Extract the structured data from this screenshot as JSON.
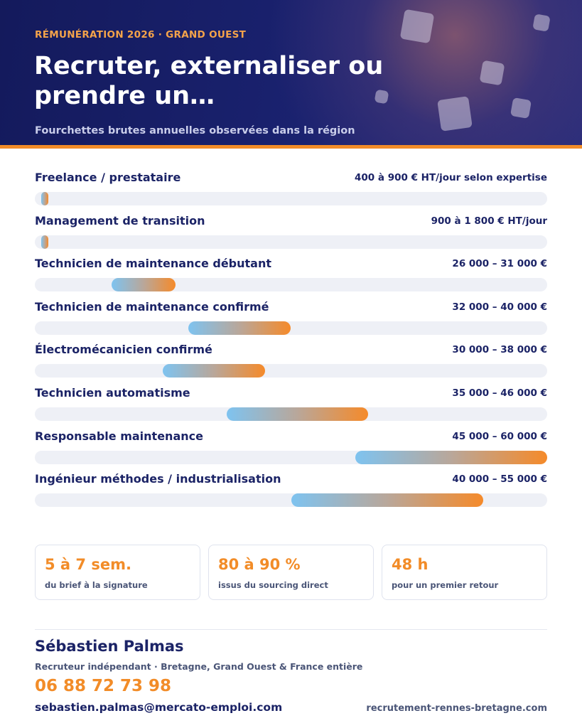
{
  "header": {
    "eyebrow": "RÉMUNÉRATION 2026 · GRAND OUEST",
    "title": "Recruter, externaliser ou prendre un…",
    "subtitle": "Fourchettes brutes annuelles observées dans la région"
  },
  "colors": {
    "accent": "#f28c28",
    "navy": "#1b2366",
    "bar_start": "#7ec3f0",
    "bar_end": "#f58a2a",
    "track": "#eef0f6"
  },
  "scale": {
    "min": 20000,
    "max": 60000,
    "unit": "€ brut annuel"
  },
  "rows": [
    {
      "label": "Freelance / prestataire",
      "value": "400 à 900 € HT/jour selon expertise",
      "min": null,
      "max": null,
      "marker_fraction": 0.012
    },
    {
      "label": "Management de transition",
      "value": "900 à 1 800 € HT/jour",
      "min": null,
      "max": null,
      "marker_fraction": 0.012
    },
    {
      "label": "Technicien de maintenance débutant",
      "value": "26 000 – 31 000 €",
      "min": 26000,
      "max": 31000
    },
    {
      "label": "Technicien de maintenance confirmé",
      "value": "32 000 – 40 000 €",
      "min": 32000,
      "max": 40000
    },
    {
      "label": "Électromécanicien confirmé",
      "value": "30 000 – 38 000 €",
      "min": 30000,
      "max": 38000
    },
    {
      "label": "Technicien automatisme",
      "value": "35 000 – 46 000 €",
      "min": 35000,
      "max": 46000
    },
    {
      "label": "Responsable maintenance",
      "value": "45 000 – 60 000 €",
      "min": 45000,
      "max": 60000
    },
    {
      "label": "Ingénieur méthodes / industrialisation",
      "value": "40 000 – 55 000 €",
      "min": 40000,
      "max": 55000
    }
  ],
  "stats": [
    {
      "value": "5 à 7 sem.",
      "label": "du brief à la signature"
    },
    {
      "value": "80 à 90 %",
      "label": "issus du sourcing direct"
    },
    {
      "value": "48 h",
      "label": "pour un premier retour"
    }
  ],
  "contact": {
    "name": "Sébastien Palmas",
    "role": "Recruteur indépendant · Bretagne, Grand Ouest & France entière",
    "phone": "06 88 72 73 98",
    "email": "sebastien.palmas@mercato-emploi.com",
    "website": "recrutement-rennes-bretagne.com"
  }
}
